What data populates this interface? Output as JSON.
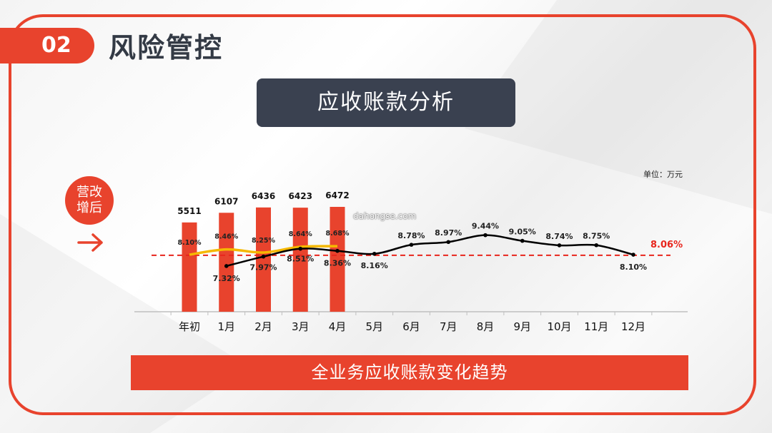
{
  "header": {
    "number": "02",
    "title": "风险管控"
  },
  "subtitle": "应收账款分析",
  "badge": {
    "line1": "营改",
    "line2": "增后"
  },
  "bottom_title": "全业务应收账款变化趋势",
  "unit_label": "单位：万元",
  "watermark": "dahongse.com",
  "colors": {
    "accent": "#e8432d",
    "dark": "#3a4150",
    "yellow": "#f5b800",
    "line": "#000000",
    "ref": "#e8261d"
  },
  "chart_data": {
    "type": "bar",
    "categories": [
      "年初",
      "1月",
      "2月",
      "3月",
      "4月",
      "5月",
      "6月",
      "7月",
      "8月",
      "9月",
      "10月",
      "11月",
      "12月"
    ],
    "bars": {
      "categories": [
        "年初",
        "1月",
        "2月",
        "3月",
        "4月"
      ],
      "values": [
        5511,
        6107,
        6436,
        6423,
        6472
      ],
      "labels": [
        "5511",
        "6107",
        "6436",
        "6423",
        "6472"
      ]
    },
    "yellow_line": {
      "categories": [
        "年初",
        "1月",
        "2月",
        "3月",
        "4月"
      ],
      "values": [
        8.1,
        8.46,
        8.25,
        8.64,
        8.68
      ],
      "labels": [
        "8.10%",
        "8.46%",
        "8.25%",
        "8.64%",
        "8.68%"
      ]
    },
    "black_line": {
      "categories": [
        "1月",
        "2月",
        "3月",
        "4月",
        "5月",
        "6月",
        "7月",
        "8月",
        "9月",
        "10月",
        "11月",
        "12月"
      ],
      "values": [
        7.32,
        7.97,
        8.51,
        8.36,
        8.16,
        8.78,
        8.97,
        9.44,
        9.05,
        8.74,
        8.75,
        8.1
      ],
      "labels": [
        "7.32%",
        "7.97%",
        "8.51%",
        "8.36%",
        "8.16%",
        "8.78%",
        "8.97%",
        "9.44%",
        "9.05%",
        "8.74%",
        "8.75%",
        "8.10%"
      ]
    },
    "reference_line": {
      "value": 8.06,
      "label": "8.06%"
    },
    "legend": "none",
    "grid": false
  }
}
